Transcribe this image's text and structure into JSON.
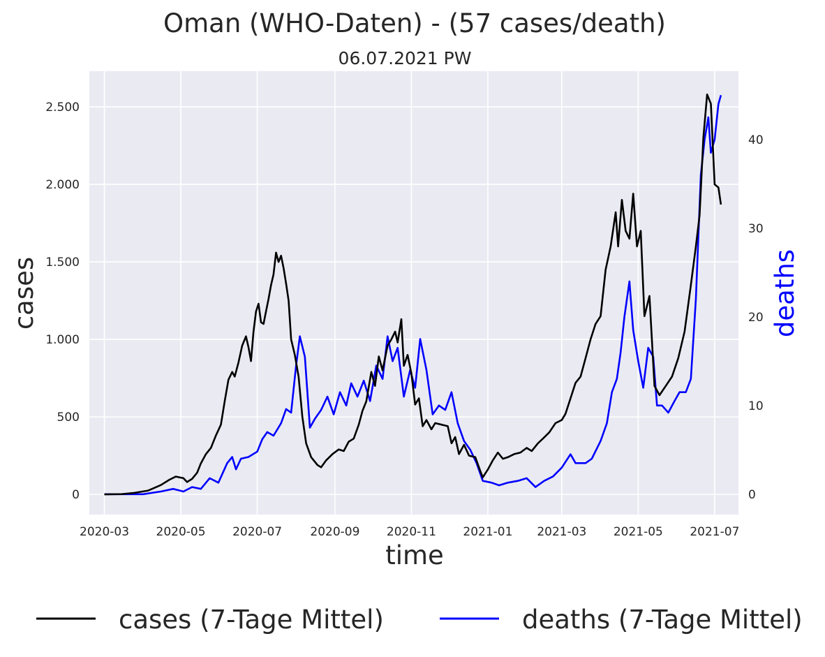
{
  "chart_data": {
    "type": "line",
    "title": "Oman (WHO-Daten) - (57 cases/death)",
    "subtitle": "06.07.2021 PW",
    "xlabel": "time",
    "ylabel_left": "cases",
    "ylabel_right": "deaths",
    "ylim_left": [
      -130,
      2730
    ],
    "ylim_right": [
      -2.3,
      47.7
    ],
    "yticks_left": [
      {
        "value": 0,
        "label": "0"
      },
      {
        "value": 500,
        "label": "500"
      },
      {
        "value": 1000,
        "label": "1.000"
      },
      {
        "value": 1500,
        "label": "1.500"
      },
      {
        "value": 2000,
        "label": "2.000"
      },
      {
        "value": 2500,
        "label": "2.500"
      }
    ],
    "yticks_right": [
      {
        "value": 0,
        "label": "0"
      },
      {
        "value": 10,
        "label": "10"
      },
      {
        "value": 20,
        "label": "20"
      },
      {
        "value": 30,
        "label": "30"
      },
      {
        "value": 40,
        "label": "40"
      }
    ],
    "xlim": [
      "2020-02-18",
      "2021-07-20"
    ],
    "xticks": [
      "2020-03",
      "2020-05",
      "2020-07",
      "2020-09",
      "2020-11",
      "2021-01",
      "2021-03",
      "2021-05",
      "2021-07"
    ],
    "grid": true,
    "legend_position": "bottom",
    "colors": {
      "background": "#eaeaf2",
      "grid": "#ffffff",
      "cases": "#000000",
      "deaths": "#0000ff"
    },
    "series": [
      {
        "name": "cases (7-Tage Mittel)",
        "axis": "left",
        "color": "#000000",
        "points": [
          [
            "2020-03-01",
            0
          ],
          [
            "2020-03-15",
            2
          ],
          [
            "2020-03-25",
            10
          ],
          [
            "2020-04-05",
            25
          ],
          [
            "2020-04-15",
            60
          ],
          [
            "2020-04-22",
            95
          ],
          [
            "2020-04-27",
            115
          ],
          [
            "2020-05-03",
            105
          ],
          [
            "2020-05-06",
            80
          ],
          [
            "2020-05-10",
            100
          ],
          [
            "2020-05-14",
            140
          ],
          [
            "2020-05-17",
            200
          ],
          [
            "2020-05-21",
            260
          ],
          [
            "2020-05-25",
            300
          ],
          [
            "2020-05-29",
            380
          ],
          [
            "2020-06-02",
            450
          ],
          [
            "2020-06-05",
            600
          ],
          [
            "2020-06-08",
            740
          ],
          [
            "2020-06-11",
            790
          ],
          [
            "2020-06-13",
            760
          ],
          [
            "2020-06-16",
            850
          ],
          [
            "2020-06-19",
            960
          ],
          [
            "2020-06-22",
            1020
          ],
          [
            "2020-06-24",
            950
          ],
          [
            "2020-06-26",
            860
          ],
          [
            "2020-06-28",
            1050
          ],
          [
            "2020-06-30",
            1180
          ],
          [
            "2020-07-02",
            1230
          ],
          [
            "2020-07-04",
            1110
          ],
          [
            "2020-07-06",
            1100
          ],
          [
            "2020-07-08",
            1180
          ],
          [
            "2020-07-10",
            1260
          ],
          [
            "2020-07-12",
            1350
          ],
          [
            "2020-07-14",
            1420
          ],
          [
            "2020-07-16",
            1560
          ],
          [
            "2020-07-18",
            1500
          ],
          [
            "2020-07-20",
            1540
          ],
          [
            "2020-07-22",
            1460
          ],
          [
            "2020-07-24",
            1360
          ],
          [
            "2020-07-26",
            1250
          ],
          [
            "2020-07-28",
            1000
          ],
          [
            "2020-07-31",
            900
          ],
          [
            "2020-08-03",
            760
          ],
          [
            "2020-08-06",
            500
          ],
          [
            "2020-08-09",
            330
          ],
          [
            "2020-08-13",
            240
          ],
          [
            "2020-08-18",
            190
          ],
          [
            "2020-08-21",
            175
          ],
          [
            "2020-08-25",
            220
          ],
          [
            "2020-08-30",
            260
          ],
          [
            "2020-09-04",
            290
          ],
          [
            "2020-09-08",
            280
          ],
          [
            "2020-09-12",
            340
          ],
          [
            "2020-09-16",
            360
          ],
          [
            "2020-09-20",
            450
          ],
          [
            "2020-09-23",
            540
          ],
          [
            "2020-09-26",
            600
          ],
          [
            "2020-09-30",
            790
          ],
          [
            "2020-10-03",
            700
          ],
          [
            "2020-10-06",
            890
          ],
          [
            "2020-10-09",
            800
          ],
          [
            "2020-10-13",
            960
          ],
          [
            "2020-10-16",
            1000
          ],
          [
            "2020-10-19",
            1050
          ],
          [
            "2020-10-21",
            980
          ],
          [
            "2020-10-24",
            1130
          ],
          [
            "2020-10-26",
            830
          ],
          [
            "2020-10-29",
            900
          ],
          [
            "2020-11-01",
            780
          ],
          [
            "2020-11-04",
            580
          ],
          [
            "2020-11-07",
            620
          ],
          [
            "2020-11-10",
            440
          ],
          [
            "2020-11-13",
            480
          ],
          [
            "2020-11-17",
            420
          ],
          [
            "2020-11-20",
            460
          ],
          [
            "2020-11-25",
            450
          ],
          [
            "2020-11-30",
            440
          ],
          [
            "2020-12-03",
            330
          ],
          [
            "2020-12-06",
            370
          ],
          [
            "2020-12-09",
            260
          ],
          [
            "2020-12-13",
            320
          ],
          [
            "2020-12-17",
            250
          ],
          [
            "2020-12-22",
            240
          ],
          [
            "2020-12-26",
            150
          ],
          [
            "2020-12-28",
            110
          ],
          [
            "2021-01-01",
            160
          ],
          [
            "2021-01-05",
            220
          ],
          [
            "2021-01-09",
            270
          ],
          [
            "2021-01-13",
            230
          ],
          [
            "2021-01-17",
            240
          ],
          [
            "2021-01-22",
            260
          ],
          [
            "2021-01-27",
            270
          ],
          [
            "2021-02-01",
            300
          ],
          [
            "2021-02-05",
            280
          ],
          [
            "2021-02-10",
            330
          ],
          [
            "2021-02-14",
            360
          ],
          [
            "2021-02-19",
            400
          ],
          [
            "2021-02-24",
            460
          ],
          [
            "2021-03-01",
            480
          ],
          [
            "2021-03-04",
            520
          ],
          [
            "2021-03-08",
            620
          ],
          [
            "2021-03-12",
            720
          ],
          [
            "2021-03-16",
            760
          ],
          [
            "2021-03-20",
            880
          ],
          [
            "2021-03-24",
            1000
          ],
          [
            "2021-03-28",
            1100
          ],
          [
            "2021-04-01",
            1150
          ],
          [
            "2021-04-05",
            1450
          ],
          [
            "2021-04-09",
            1600
          ],
          [
            "2021-04-13",
            1820
          ],
          [
            "2021-04-15",
            1600
          ],
          [
            "2021-04-18",
            1900
          ],
          [
            "2021-04-21",
            1700
          ],
          [
            "2021-04-24",
            1650
          ],
          [
            "2021-04-27",
            1940
          ],
          [
            "2021-04-30",
            1600
          ],
          [
            "2021-05-03",
            1700
          ],
          [
            "2021-05-06",
            1150
          ],
          [
            "2021-05-10",
            1280
          ],
          [
            "2021-05-14",
            700
          ],
          [
            "2021-05-18",
            640
          ],
          [
            "2021-05-23",
            700
          ],
          [
            "2021-05-28",
            760
          ],
          [
            "2021-06-02",
            880
          ],
          [
            "2021-06-07",
            1050
          ],
          [
            "2021-06-12",
            1350
          ],
          [
            "2021-06-16",
            1600
          ],
          [
            "2021-06-19",
            1800
          ],
          [
            "2021-06-22",
            2300
          ],
          [
            "2021-06-25",
            2580
          ],
          [
            "2021-06-28",
            2520
          ],
          [
            "2021-07-01",
            2000
          ],
          [
            "2021-07-04",
            1980
          ],
          [
            "2021-07-06",
            1870
          ]
        ]
      },
      {
        "name": "deaths (7-Tage Mittel)",
        "axis": "right",
        "color": "#0000ff",
        "points": [
          [
            "2020-03-01",
            0
          ],
          [
            "2020-04-01",
            0
          ],
          [
            "2020-04-15",
            0.3
          ],
          [
            "2020-04-25",
            0.6
          ],
          [
            "2020-05-03",
            0.3
          ],
          [
            "2020-05-10",
            0.8
          ],
          [
            "2020-05-17",
            0.6
          ],
          [
            "2020-05-24",
            1.8
          ],
          [
            "2020-05-31",
            1.3
          ],
          [
            "2020-06-07",
            3.5
          ],
          [
            "2020-06-11",
            4.2
          ],
          [
            "2020-06-14",
            2.8
          ],
          [
            "2020-06-18",
            4.0
          ],
          [
            "2020-06-24",
            4.2
          ],
          [
            "2020-07-01",
            4.8
          ],
          [
            "2020-07-05",
            6.2
          ],
          [
            "2020-07-09",
            7.0
          ],
          [
            "2020-07-14",
            6.6
          ],
          [
            "2020-07-20",
            8.0
          ],
          [
            "2020-07-24",
            9.6
          ],
          [
            "2020-07-28",
            9.2
          ],
          [
            "2020-08-01",
            14.5
          ],
          [
            "2020-08-04",
            17.8
          ],
          [
            "2020-08-08",
            15.5
          ],
          [
            "2020-08-12",
            7.5
          ],
          [
            "2020-08-16",
            8.5
          ],
          [
            "2020-08-21",
            9.5
          ],
          [
            "2020-08-26",
            11.0
          ],
          [
            "2020-08-31",
            9.0
          ],
          [
            "2020-09-05",
            11.5
          ],
          [
            "2020-09-10",
            10.0
          ],
          [
            "2020-09-14",
            12.5
          ],
          [
            "2020-09-19",
            11.0
          ],
          [
            "2020-09-24",
            12.8
          ],
          [
            "2020-09-29",
            10.5
          ],
          [
            "2020-10-04",
            14.5
          ],
          [
            "2020-10-09",
            13.0
          ],
          [
            "2020-10-13",
            17.8
          ],
          [
            "2020-10-17",
            15.0
          ],
          [
            "2020-10-21",
            16.5
          ],
          [
            "2020-10-26",
            11.0
          ],
          [
            "2020-10-31",
            14.0
          ],
          [
            "2020-11-04",
            12.0
          ],
          [
            "2020-11-08",
            17.5
          ],
          [
            "2020-11-13",
            14.0
          ],
          [
            "2020-11-18",
            9.0
          ],
          [
            "2020-11-23",
            10.0
          ],
          [
            "2020-11-28",
            9.5
          ],
          [
            "2020-12-03",
            11.5
          ],
          [
            "2020-12-08",
            8.0
          ],
          [
            "2020-12-13",
            6.0
          ],
          [
            "2020-12-18",
            5.0
          ],
          [
            "2020-12-23",
            3.5
          ],
          [
            "2020-12-28",
            1.5
          ],
          [
            "2021-01-04",
            1.3
          ],
          [
            "2021-01-10",
            1.0
          ],
          [
            "2021-01-17",
            1.3
          ],
          [
            "2021-01-25",
            1.5
          ],
          [
            "2021-02-01",
            1.8
          ],
          [
            "2021-02-08",
            0.8
          ],
          [
            "2021-02-15",
            1.5
          ],
          [
            "2021-02-22",
            2.0
          ],
          [
            "2021-03-01",
            3.0
          ],
          [
            "2021-03-08",
            4.5
          ],
          [
            "2021-03-12",
            3.5
          ],
          [
            "2021-03-20",
            3.5
          ],
          [
            "2021-03-25",
            4.0
          ],
          [
            "2021-04-01",
            6.0
          ],
          [
            "2021-04-06",
            8.0
          ],
          [
            "2021-04-10",
            11.5
          ],
          [
            "2021-04-14",
            13.0
          ],
          [
            "2021-04-17",
            16.0
          ],
          [
            "2021-04-20",
            20.0
          ],
          [
            "2021-04-24",
            24.0
          ],
          [
            "2021-04-27",
            18.5
          ],
          [
            "2021-05-01",
            15.0
          ],
          [
            "2021-05-05",
            12.0
          ],
          [
            "2021-05-09",
            16.5
          ],
          [
            "2021-05-13",
            15.5
          ],
          [
            "2021-05-16",
            10.0
          ],
          [
            "2021-05-20",
            10.0
          ],
          [
            "2021-05-25",
            9.2
          ],
          [
            "2021-05-30",
            10.5
          ],
          [
            "2021-06-03",
            11.5
          ],
          [
            "2021-06-08",
            11.5
          ],
          [
            "2021-06-12",
            13.0
          ],
          [
            "2021-06-16",
            22.0
          ],
          [
            "2021-06-20",
            36.0
          ],
          [
            "2021-06-23",
            40.0
          ],
          [
            "2021-06-26",
            42.5
          ],
          [
            "2021-06-28",
            38.5
          ],
          [
            "2021-07-01",
            40.0
          ],
          [
            "2021-07-04",
            44.0
          ],
          [
            "2021-07-06",
            45.0
          ]
        ]
      }
    ]
  }
}
